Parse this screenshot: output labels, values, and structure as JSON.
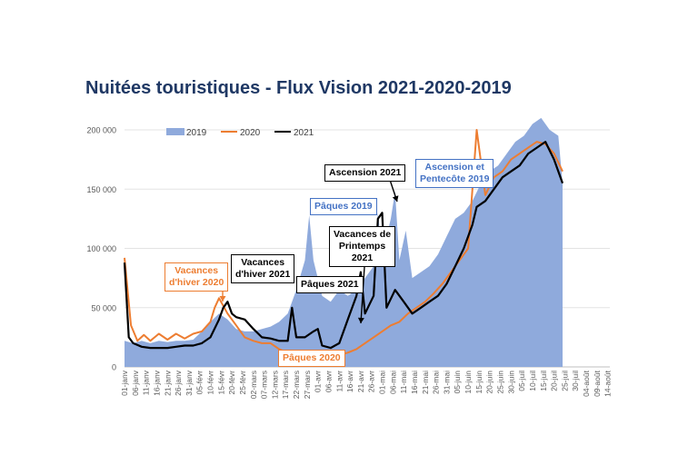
{
  "chart_data": {
    "type": "area",
    "title": "Nuitées touristiques - Flux Vision 2021-2020-2019",
    "ylim": [
      0,
      200000
    ],
    "y_ticks": [
      "0",
      "50 000",
      "100 000",
      "150 000",
      "200 000"
    ],
    "x_ticks": [
      "01-janv",
      "06-janv",
      "11-janv",
      "16-janv",
      "21-janv",
      "26-janv",
      "31-janv",
      "05-févr",
      "10-févr",
      "15-févr",
      "20-févr",
      "25-févr",
      "02-mars",
      "07-mars",
      "12-mars",
      "17-mars",
      "22-mars",
      "27-mars",
      "01-avr",
      "06-avr",
      "11-avr",
      "16-avr",
      "21-avr",
      "26-avr",
      "01-mai",
      "06-mai",
      "11-mai",
      "16-mai",
      "21-mai",
      "26-mai",
      "31-mai",
      "05-juin",
      "10-juin",
      "15-juin",
      "20-juin",
      "25-juin",
      "30-juin",
      "05-juil",
      "10-juil",
      "15-juil",
      "20-juil",
      "25-juil",
      "30-juil",
      "04-août",
      "09-août",
      "14-août"
    ],
    "series": [
      {
        "name": "2019",
        "style": "area",
        "color": "#8faadc",
        "points": [
          [
            0,
            22000
          ],
          [
            4,
            20000
          ],
          [
            8,
            22000
          ],
          [
            12,
            20000
          ],
          [
            16,
            22000
          ],
          [
            20,
            21000
          ],
          [
            24,
            22000
          ],
          [
            28,
            22000
          ],
          [
            32,
            23000
          ],
          [
            36,
            30000
          ],
          [
            40,
            38000
          ],
          [
            44,
            45000
          ],
          [
            48,
            40000
          ],
          [
            52,
            32000
          ],
          [
            56,
            30000
          ],
          [
            60,
            30000
          ],
          [
            64,
            32000
          ],
          [
            68,
            34000
          ],
          [
            72,
            38000
          ],
          [
            76,
            45000
          ],
          [
            80,
            65000
          ],
          [
            84,
            90000
          ],
          [
            86,
            128000
          ],
          [
            88,
            90000
          ],
          [
            92,
            60000
          ],
          [
            96,
            55000
          ],
          [
            100,
            65000
          ],
          [
            104,
            60000
          ],
          [
            108,
            65000
          ],
          [
            112,
            75000
          ],
          [
            116,
            85000
          ],
          [
            118,
            130000
          ],
          [
            120,
            95000
          ],
          [
            124,
            125000
          ],
          [
            126,
            148000
          ],
          [
            128,
            90000
          ],
          [
            131,
            115000
          ],
          [
            134,
            75000
          ],
          [
            138,
            80000
          ],
          [
            142,
            85000
          ],
          [
            146,
            95000
          ],
          [
            150,
            110000
          ],
          [
            154,
            125000
          ],
          [
            158,
            130000
          ],
          [
            162,
            140000
          ],
          [
            166,
            155000
          ],
          [
            170,
            165000
          ],
          [
            174,
            170000
          ],
          [
            178,
            180000
          ],
          [
            182,
            190000
          ],
          [
            186,
            195000
          ],
          [
            190,
            205000
          ],
          [
            194,
            210000
          ],
          [
            198,
            200000
          ],
          [
            202,
            195000
          ],
          [
            204,
            155000
          ]
        ]
      },
      {
        "name": "2020",
        "style": "line",
        "color": "#ed7d31",
        "points": [
          [
            0,
            92000
          ],
          [
            3,
            35000
          ],
          [
            6,
            22000
          ],
          [
            9,
            27000
          ],
          [
            12,
            22000
          ],
          [
            16,
            28000
          ],
          [
            20,
            23000
          ],
          [
            24,
            28000
          ],
          [
            28,
            24000
          ],
          [
            32,
            28000
          ],
          [
            36,
            30000
          ],
          [
            40,
            38000
          ],
          [
            42,
            50000
          ],
          [
            44,
            58000
          ],
          [
            48,
            45000
          ],
          [
            52,
            35000
          ],
          [
            56,
            25000
          ],
          [
            60,
            22000
          ],
          [
            64,
            20000
          ],
          [
            68,
            20000
          ],
          [
            72,
            15000
          ],
          [
            76,
            12000
          ],
          [
            80,
            10000
          ],
          [
            84,
            9000
          ],
          [
            88,
            8000
          ],
          [
            92,
            8000
          ],
          [
            96,
            9000
          ],
          [
            100,
            10000
          ],
          [
            104,
            12000
          ],
          [
            108,
            15000
          ],
          [
            112,
            20000
          ],
          [
            116,
            25000
          ],
          [
            120,
            30000
          ],
          [
            124,
            35000
          ],
          [
            128,
            38000
          ],
          [
            132,
            45000
          ],
          [
            136,
            50000
          ],
          [
            140,
            55000
          ],
          [
            144,
            62000
          ],
          [
            148,
            70000
          ],
          [
            152,
            80000
          ],
          [
            156,
            90000
          ],
          [
            160,
            100000
          ],
          [
            164,
            200000
          ],
          [
            168,
            145000
          ],
          [
            172,
            160000
          ],
          [
            176,
            165000
          ],
          [
            180,
            175000
          ],
          [
            184,
            180000
          ],
          [
            188,
            185000
          ],
          [
            192,
            190000
          ],
          [
            196,
            188000
          ],
          [
            200,
            180000
          ],
          [
            204,
            165000
          ]
        ]
      },
      {
        "name": "2021",
        "style": "line",
        "color": "#000000",
        "points": [
          [
            0,
            88000
          ],
          [
            2,
            25000
          ],
          [
            4,
            20000
          ],
          [
            8,
            17000
          ],
          [
            12,
            16000
          ],
          [
            16,
            16000
          ],
          [
            20,
            16000
          ],
          [
            24,
            17000
          ],
          [
            28,
            18000
          ],
          [
            32,
            18000
          ],
          [
            36,
            20000
          ],
          [
            40,
            25000
          ],
          [
            44,
            40000
          ],
          [
            46,
            50000
          ],
          [
            48,
            55000
          ],
          [
            50,
            45000
          ],
          [
            52,
            42000
          ],
          [
            56,
            40000
          ],
          [
            60,
            32000
          ],
          [
            64,
            25000
          ],
          [
            68,
            24000
          ],
          [
            72,
            22000
          ],
          [
            76,
            22000
          ],
          [
            78,
            50000
          ],
          [
            80,
            25000
          ],
          [
            84,
            25000
          ],
          [
            88,
            30000
          ],
          [
            90,
            32000
          ],
          [
            92,
            18000
          ],
          [
            96,
            16000
          ],
          [
            100,
            20000
          ],
          [
            104,
            40000
          ],
          [
            108,
            60000
          ],
          [
            110,
            80000
          ],
          [
            112,
            45000
          ],
          [
            116,
            60000
          ],
          [
            118,
            125000
          ],
          [
            120,
            130000
          ],
          [
            122,
            50000
          ],
          [
            126,
            65000
          ],
          [
            130,
            55000
          ],
          [
            134,
            45000
          ],
          [
            138,
            50000
          ],
          [
            142,
            55000
          ],
          [
            146,
            60000
          ],
          [
            150,
            70000
          ],
          [
            154,
            85000
          ],
          [
            158,
            100000
          ],
          [
            162,
            120000
          ],
          [
            164,
            135000
          ],
          [
            168,
            140000
          ],
          [
            172,
            150000
          ],
          [
            176,
            160000
          ],
          [
            180,
            165000
          ],
          [
            184,
            170000
          ],
          [
            188,
            180000
          ],
          [
            192,
            185000
          ],
          [
            196,
            190000
          ],
          [
            200,
            175000
          ],
          [
            204,
            155000
          ]
        ]
      }
    ],
    "legend_position": "top",
    "grid": true,
    "annotations": [
      {
        "text": "Vacances d'hiver 2020",
        "color": "#ed7d31"
      },
      {
        "text": "Vacances d'hiver 2021",
        "color": "#000000"
      },
      {
        "text": "Pâques 2021",
        "color": "#000000"
      },
      {
        "text": "Pâques 2020",
        "color": "#ed7d31"
      },
      {
        "text": "Vacances de Printemps 2021",
        "color": "#000000"
      },
      {
        "text": "Pâques 2019",
        "color": "#4472c4"
      },
      {
        "text": "Ascension 2021",
        "color": "#000000"
      },
      {
        "text": "Ascension et Pentecôte 2019",
        "color": "#4472c4"
      }
    ]
  }
}
